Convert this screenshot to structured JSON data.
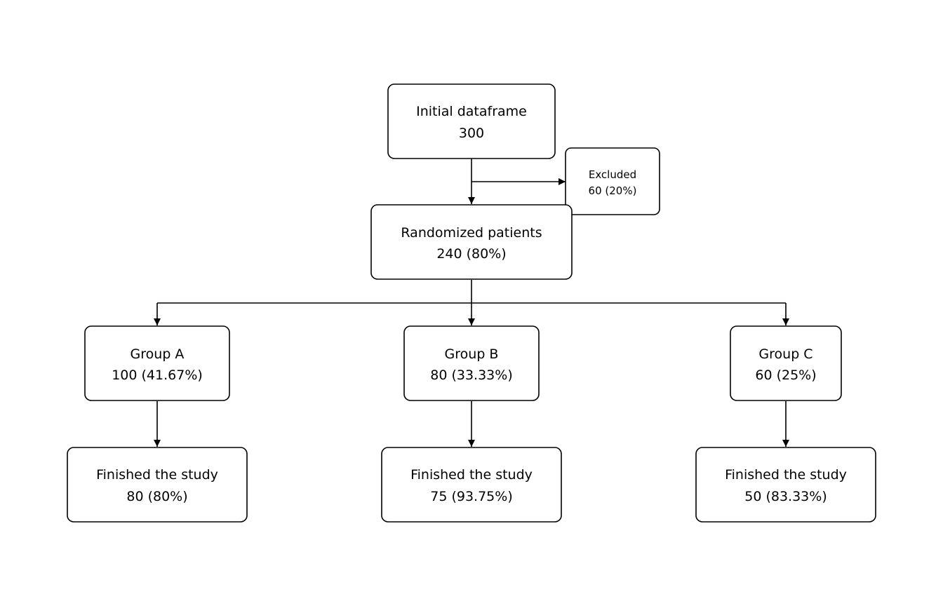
{
  "nodes": {
    "initial": {
      "label": "Initial dataframe",
      "value": "300"
    },
    "excluded": {
      "label": "Excluded",
      "value": "60 (20%)"
    },
    "randomized": {
      "label": "Randomized patients",
      "value": "240 (80%)"
    },
    "group_a": {
      "label": "Group A",
      "value": "100 (41.67%)"
    },
    "group_b": {
      "label": "Group B",
      "value": "80 (33.33%)"
    },
    "group_c": {
      "label": "Group C",
      "value": "60 (25%)"
    },
    "finished_a": {
      "label": "Finished the study",
      "value": "80 (80%)"
    },
    "finished_b": {
      "label": "Finished the study",
      "value": "75 (93.75%)"
    },
    "finished_c": {
      "label": "Finished the study",
      "value": "50 (83.33%)"
    }
  },
  "colors": {
    "line": "#000000",
    "box_fill": "#ffffff",
    "text": "#000000"
  }
}
